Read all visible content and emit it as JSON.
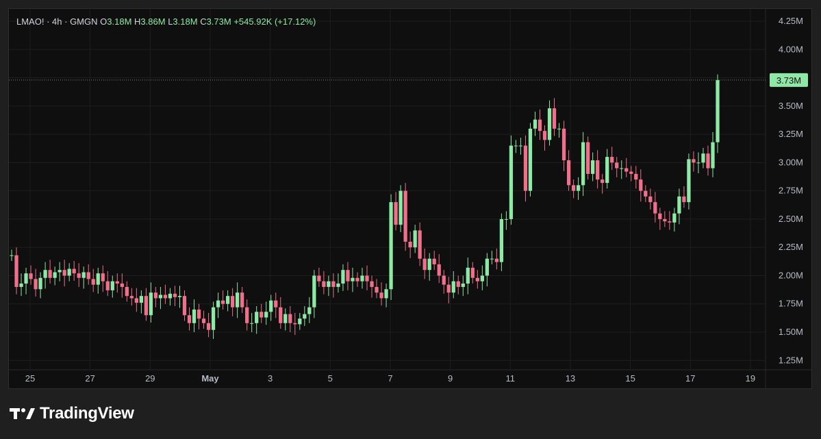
{
  "legend": {
    "symbol": "LMAO!",
    "interval": "4h",
    "exchange": "GMGN",
    "open_label": "O",
    "open": "3.18M",
    "high_label": "H",
    "high": "3.86M",
    "low_label": "L",
    "low": "3.18M",
    "close_label": "C",
    "close": "3.73M",
    "change": "+545.92K (+17.12%)"
  },
  "brand": {
    "name": "TradingView",
    "icon": "tradingview-logo-icon"
  },
  "colors": {
    "up": "#8ee8a6",
    "down": "#f0708b",
    "background": "#0f0f0f",
    "grid": "#1e1e1e",
    "last_price_label": "#8ee8a6"
  },
  "chart_data": {
    "type": "candlestick",
    "interval": "4h",
    "y_unit": "M",
    "ylim": [
      1.1,
      4.3
    ],
    "y_ticks": [
      "1.25M",
      "1.50M",
      "1.75M",
      "2.00M",
      "2.25M",
      "2.50M",
      "2.75M",
      "3.00M",
      "3.25M",
      "3.50M",
      "3.75M",
      "4.00M",
      "4.25M"
    ],
    "y_tick_values": [
      1.25,
      1.5,
      1.75,
      2.0,
      2.25,
      2.5,
      2.75,
      3.0,
      3.25,
      3.5,
      3.75,
      4.0,
      4.25
    ],
    "x_ticks": [
      "25",
      "27",
      "29",
      "May",
      "3",
      "5",
      "7",
      "9",
      "11",
      "13",
      "15",
      "17",
      "19"
    ],
    "x_tick_days": [
      0,
      2,
      4,
      6,
      8,
      10,
      12,
      14,
      16,
      18,
      20,
      22,
      24
    ],
    "x_tick_bold": [
      false,
      false,
      false,
      true,
      false,
      false,
      false,
      false,
      false,
      false,
      false,
      false,
      false
    ],
    "last_price": 3.73,
    "last_price_label": "3.73M",
    "grid": true,
    "closes": [
      2.18,
      1.9,
      1.93,
      2.02,
      1.97,
      1.88,
      1.98,
      2.05,
      1.98,
      2.03,
      2.05,
      2.0,
      2.06,
      2.02,
      1.98,
      2.03,
      1.97,
      1.92,
      2.02,
      1.95,
      1.87,
      1.95,
      1.93,
      1.9,
      1.82,
      1.8,
      1.76,
      1.82,
      1.65,
      1.85,
      1.8,
      1.83,
      1.8,
      1.84,
      1.81,
      1.82,
      1.65,
      1.58,
      1.7,
      1.62,
      1.58,
      1.52,
      1.72,
      1.78,
      1.75,
      1.82,
      1.72,
      1.85,
      1.72,
      1.58,
      1.58,
      1.68,
      1.63,
      1.68,
      1.78,
      1.72,
      1.58,
      1.66,
      1.58,
      1.57,
      1.62,
      1.66,
      1.72,
      2.0,
      1.95,
      1.9,
      1.95,
      1.9,
      1.93,
      2.05,
      1.95,
      1.98,
      1.95,
      2.0,
      1.95,
      1.9,
      1.85,
      1.8,
      1.88,
      2.65,
      2.45,
      2.75,
      2.3,
      2.25,
      2.4,
      2.15,
      2.05,
      2.15,
      2.1,
      2.0,
      1.92,
      1.85,
      1.95,
      1.9,
      1.93,
      2.07,
      1.98,
      1.95,
      2.0,
      2.15,
      2.15,
      2.12,
      2.5,
      2.5,
      3.15,
      3.15,
      3.15,
      2.75,
      3.3,
      3.38,
      3.28,
      3.2,
      3.48,
      3.3,
      3.3,
      3.02,
      2.8,
      2.75,
      2.8,
      3.18,
      2.9,
      3.02,
      2.85,
      2.82,
      3.05,
      3.0,
      2.95,
      2.95,
      2.92,
      2.9,
      2.85,
      2.75,
      2.7,
      2.65,
      2.55,
      2.5,
      2.48,
      2.47,
      2.55,
      2.7,
      2.65,
      3.03,
      3.0,
      3.0,
      3.08,
      2.95,
      3.18,
      3.73
    ],
    "opens": [
      2.18,
      2.18,
      1.9,
      1.93,
      2.02,
      1.97,
      1.88,
      1.98,
      2.05,
      1.98,
      2.03,
      2.05,
      2.0,
      2.06,
      2.02,
      1.98,
      2.03,
      1.97,
      1.92,
      2.02,
      1.95,
      1.87,
      1.95,
      1.93,
      1.9,
      1.82,
      1.8,
      1.76,
      1.82,
      1.65,
      1.85,
      1.8,
      1.83,
      1.8,
      1.84,
      1.81,
      1.82,
      1.65,
      1.58,
      1.7,
      1.62,
      1.58,
      1.52,
      1.72,
      1.78,
      1.75,
      1.82,
      1.72,
      1.85,
      1.72,
      1.58,
      1.58,
      1.68,
      1.63,
      1.68,
      1.78,
      1.72,
      1.58,
      1.66,
      1.58,
      1.57,
      1.62,
      1.66,
      1.72,
      2.0,
      1.95,
      1.9,
      1.95,
      1.9,
      1.93,
      2.05,
      1.95,
      1.98,
      1.95,
      2.0,
      1.95,
      1.9,
      1.85,
      1.8,
      1.88,
      2.65,
      2.45,
      2.75,
      2.3,
      2.25,
      2.4,
      2.15,
      2.05,
      2.15,
      2.1,
      2.0,
      1.92,
      1.85,
      1.95,
      1.9,
      1.93,
      2.07,
      1.98,
      1.95,
      2.0,
      2.15,
      2.15,
      2.12,
      2.5,
      2.5,
      3.15,
      3.15,
      3.15,
      2.75,
      3.3,
      3.38,
      3.28,
      3.2,
      3.48,
      3.3,
      3.3,
      3.02,
      2.8,
      2.75,
      2.8,
      3.18,
      2.9,
      3.02,
      2.85,
      2.82,
      3.05,
      3.0,
      2.95,
      2.95,
      2.92,
      2.9,
      2.85,
      2.75,
      2.7,
      2.65,
      2.55,
      2.5,
      2.48,
      2.47,
      2.55,
      2.7,
      2.65,
      3.03,
      3.0,
      3.0,
      3.08,
      2.95,
      3.18
    ]
  }
}
